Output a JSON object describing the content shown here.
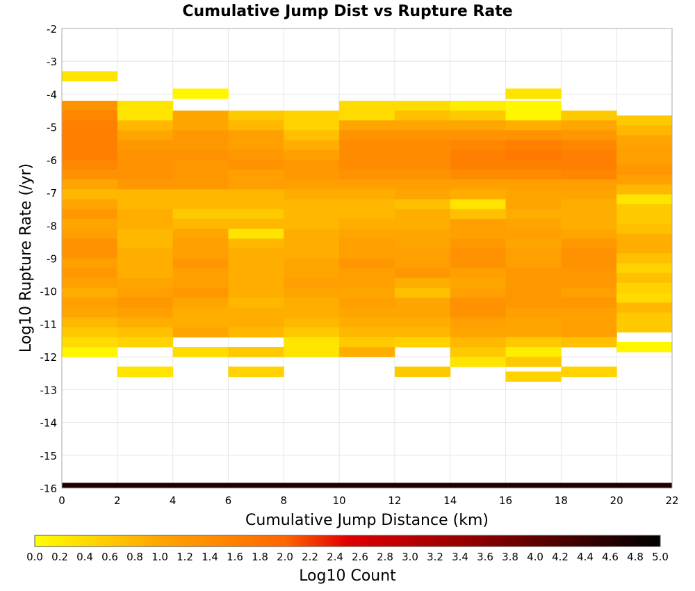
{
  "chart_data": {
    "type": "heatmap",
    "title": "Cumulative Jump Dist vs Rupture Rate",
    "xlabel": "Cumulative Jump Distance (km)",
    "ylabel": "Log10 Rupture Rate (/yr)",
    "xlim": [
      0,
      22
    ],
    "ylim": [
      -16,
      -2
    ],
    "x_ticks": [
      "0",
      "2",
      "4",
      "6",
      "8",
      "10",
      "12",
      "14",
      "16",
      "18",
      "20",
      "22"
    ],
    "y_ticks": [
      "-2",
      "-3",
      "-4",
      "-5",
      "-6",
      "-7",
      "-8",
      "-9",
      "-10",
      "-11",
      "-12",
      "-13",
      "-14",
      "-15",
      "-16"
    ],
    "x_bin_width": 2,
    "y_bin_width": 0.3,
    "grid": true,
    "colorbar": {
      "label": "Log10 Count",
      "min": 0.0,
      "max": 5.0,
      "ticks": [
        "0.0",
        "0.2",
        "0.4",
        "0.6",
        "0.8",
        "1.0",
        "1.2",
        "1.4",
        "1.6",
        "1.8",
        "2.0",
        "2.2",
        "2.4",
        "2.6",
        "2.8",
        "3.0",
        "3.2",
        "3.4",
        "3.6",
        "3.8",
        "4.0",
        "4.2",
        "4.4",
        "4.6",
        "4.8",
        "5.0"
      ],
      "colors": [
        "#ffff00",
        "#ffa500",
        "#ff6600",
        "#e00000",
        "#900000",
        "#000000"
      ]
    },
    "columns": [
      {
        "x": 1,
        "cells": [
          [
            -3.45,
            0.3
          ],
          [
            -4.35,
            1.3
          ],
          [
            -4.65,
            1.5
          ],
          [
            -4.95,
            1.6
          ],
          [
            -5.25,
            1.6
          ],
          [
            -5.55,
            1.6
          ],
          [
            -5.85,
            1.6
          ],
          [
            -6.15,
            1.5
          ],
          [
            -6.45,
            1.3
          ],
          [
            -6.75,
            1.0
          ],
          [
            -7.05,
            0.8
          ],
          [
            -7.35,
            1.0
          ],
          [
            -7.65,
            1.2
          ],
          [
            -7.95,
            1.0
          ],
          [
            -8.25,
            1.1
          ],
          [
            -8.55,
            1.3
          ],
          [
            -8.85,
            1.3
          ],
          [
            -9.15,
            1.1
          ],
          [
            -9.45,
            1.2
          ],
          [
            -9.75,
            1.1
          ],
          [
            -10.05,
            0.9
          ],
          [
            -10.35,
            1.1
          ],
          [
            -10.65,
            1.0
          ],
          [
            -10.95,
            0.8
          ],
          [
            -11.25,
            0.6
          ],
          [
            -11.55,
            0.4
          ],
          [
            -11.85,
            0.1
          ]
        ]
      },
      {
        "x": 3,
        "cells": [
          [
            -4.35,
            0.3
          ],
          [
            -4.65,
            0.3
          ],
          [
            -4.95,
            0.8
          ],
          [
            -5.25,
            1.0
          ],
          [
            -5.55,
            1.2
          ],
          [
            -5.85,
            1.3
          ],
          [
            -6.15,
            1.3
          ],
          [
            -6.45,
            1.3
          ],
          [
            -6.75,
            1.2
          ],
          [
            -7.05,
            0.8
          ],
          [
            -7.35,
            0.8
          ],
          [
            -7.65,
            0.9
          ],
          [
            -7.95,
            0.9
          ],
          [
            -8.25,
            0.8
          ],
          [
            -8.55,
            0.8
          ],
          [
            -8.85,
            0.9
          ],
          [
            -9.15,
            0.9
          ],
          [
            -9.45,
            0.9
          ],
          [
            -9.75,
            1.0
          ],
          [
            -10.05,
            1.1
          ],
          [
            -10.35,
            1.2
          ],
          [
            -10.65,
            1.1
          ],
          [
            -10.95,
            0.9
          ],
          [
            -11.25,
            0.7
          ],
          [
            -11.55,
            0.5
          ],
          [
            -12.45,
            0.3
          ]
        ]
      },
      {
        "x": 5,
        "cells": [
          [
            -3.98,
            0.1
          ],
          [
            -4.65,
            1.0
          ],
          [
            -4.95,
            1.0
          ],
          [
            -5.25,
            1.2
          ],
          [
            -5.55,
            1.2
          ],
          [
            -5.85,
            1.3
          ],
          [
            -6.15,
            1.2
          ],
          [
            -6.45,
            1.2
          ],
          [
            -6.75,
            1.2
          ],
          [
            -7.05,
            0.8
          ],
          [
            -7.35,
            0.8
          ],
          [
            -7.65,
            0.6
          ],
          [
            -7.95,
            0.8
          ],
          [
            -8.25,
            1.0
          ],
          [
            -8.55,
            1.1
          ],
          [
            -8.85,
            1.1
          ],
          [
            -9.15,
            1.2
          ],
          [
            -9.45,
            1.1
          ],
          [
            -9.75,
            1.1
          ],
          [
            -10.05,
            1.2
          ],
          [
            -10.35,
            1.0
          ],
          [
            -10.65,
            0.9
          ],
          [
            -10.95,
            0.9
          ],
          [
            -11.25,
            1.0
          ],
          [
            -11.85,
            0.4
          ]
        ]
      },
      {
        "x": 7,
        "cells": [
          [
            -4.65,
            0.6
          ],
          [
            -4.95,
            0.8
          ],
          [
            -5.25,
            1.1
          ],
          [
            -5.55,
            1.1
          ],
          [
            -5.85,
            1.2
          ],
          [
            -6.15,
            1.3
          ],
          [
            -6.45,
            1.1
          ],
          [
            -6.75,
            1.1
          ],
          [
            -7.05,
            0.8
          ],
          [
            -7.35,
            0.8
          ],
          [
            -7.65,
            0.6
          ],
          [
            -7.95,
            0.8
          ],
          [
            -8.25,
            0.3
          ],
          [
            -8.55,
            0.8
          ],
          [
            -8.85,
            0.9
          ],
          [
            -9.15,
            0.9
          ],
          [
            -9.45,
            0.9
          ],
          [
            -9.75,
            0.9
          ],
          [
            -10.05,
            0.9
          ],
          [
            -10.35,
            0.8
          ],
          [
            -10.65,
            0.9
          ],
          [
            -10.95,
            0.9
          ],
          [
            -11.25,
            0.8
          ],
          [
            -11.85,
            0.6
          ],
          [
            -12.45,
            0.5
          ]
        ]
      },
      {
        "x": 9,
        "cells": [
          [
            -4.65,
            0.5
          ],
          [
            -4.95,
            0.5
          ],
          [
            -5.25,
            0.7
          ],
          [
            -5.55,
            0.9
          ],
          [
            -5.85,
            1.1
          ],
          [
            -6.15,
            1.2
          ],
          [
            -6.45,
            1.2
          ],
          [
            -6.75,
            1.1
          ],
          [
            -7.05,
            0.9
          ],
          [
            -7.35,
            0.8
          ],
          [
            -7.65,
            0.8
          ],
          [
            -7.95,
            0.8
          ],
          [
            -8.25,
            0.9
          ],
          [
            -8.55,
            0.9
          ],
          [
            -8.85,
            0.9
          ],
          [
            -9.15,
            1.0
          ],
          [
            -9.45,
            1.0
          ],
          [
            -9.75,
            1.1
          ],
          [
            -10.05,
            1.0
          ],
          [
            -10.35,
            0.9
          ],
          [
            -10.65,
            0.9
          ],
          [
            -10.95,
            0.8
          ],
          [
            -11.25,
            0.6
          ],
          [
            -11.55,
            0.3
          ],
          [
            -11.85,
            0.3
          ]
        ]
      },
      {
        "x": 11,
        "cells": [
          [
            -4.35,
            0.4
          ],
          [
            -4.65,
            0.4
          ],
          [
            -4.95,
            1.0
          ],
          [
            -5.25,
            1.3
          ],
          [
            -5.55,
            1.4
          ],
          [
            -5.85,
            1.4
          ],
          [
            -6.15,
            1.4
          ],
          [
            -6.45,
            1.3
          ],
          [
            -6.75,
            1.1
          ],
          [
            -7.05,
            0.9
          ],
          [
            -7.35,
            0.8
          ],
          [
            -7.65,
            0.8
          ],
          [
            -7.95,
            0.9
          ],
          [
            -8.25,
            1.0
          ],
          [
            -8.55,
            1.1
          ],
          [
            -8.85,
            1.1
          ],
          [
            -9.15,
            1.2
          ],
          [
            -9.45,
            1.1
          ],
          [
            -9.75,
            1.1
          ],
          [
            -10.05,
            1.0
          ],
          [
            -10.35,
            1.1
          ],
          [
            -10.65,
            1.0
          ],
          [
            -10.95,
            0.9
          ],
          [
            -11.25,
            0.8
          ],
          [
            -11.55,
            0.6
          ],
          [
            -11.85,
            0.9
          ]
        ]
      },
      {
        "x": 13,
        "cells": [
          [
            -4.35,
            0.4
          ],
          [
            -4.65,
            0.7
          ],
          [
            -4.95,
            1.0
          ],
          [
            -5.25,
            1.3
          ],
          [
            -5.55,
            1.4
          ],
          [
            -5.85,
            1.4
          ],
          [
            -6.15,
            1.4
          ],
          [
            -6.45,
            1.3
          ],
          [
            -6.75,
            1.1
          ],
          [
            -7.05,
            1.0
          ],
          [
            -7.35,
            0.7
          ],
          [
            -7.65,
            0.9
          ],
          [
            -7.95,
            0.9
          ],
          [
            -8.25,
            1.0
          ],
          [
            -8.55,
            1.0
          ],
          [
            -8.85,
            1.1
          ],
          [
            -9.15,
            1.1
          ],
          [
            -9.45,
            1.2
          ],
          [
            -9.75,
            0.9
          ],
          [
            -10.05,
            0.7
          ],
          [
            -10.35,
            1.0
          ],
          [
            -10.65,
            1.0
          ],
          [
            -10.95,
            0.9
          ],
          [
            -11.25,
            0.8
          ],
          [
            -11.55,
            0.5
          ],
          [
            -12.45,
            0.6
          ]
        ]
      },
      {
        "x": 15,
        "cells": [
          [
            -4.35,
            0.2
          ],
          [
            -4.65,
            0.6
          ],
          [
            -4.95,
            1.0
          ],
          [
            -5.25,
            1.3
          ],
          [
            -5.55,
            1.5
          ],
          [
            -5.85,
            1.6
          ],
          [
            -6.15,
            1.6
          ],
          [
            -6.45,
            1.4
          ],
          [
            -6.75,
            1.1
          ],
          [
            -7.05,
            0.9
          ],
          [
            -7.35,
            0.3
          ],
          [
            -7.65,
            0.7
          ],
          [
            -7.95,
            1.1
          ],
          [
            -8.25,
            1.1
          ],
          [
            -8.55,
            1.2
          ],
          [
            -8.85,
            1.3
          ],
          [
            -9.15,
            1.3
          ],
          [
            -9.45,
            1.1
          ],
          [
            -9.75,
            1.0
          ],
          [
            -10.05,
            1.1
          ],
          [
            -10.35,
            1.3
          ],
          [
            -10.65,
            1.3
          ],
          [
            -10.95,
            1.1
          ],
          [
            -11.25,
            1.0
          ],
          [
            -11.55,
            0.8
          ],
          [
            -11.85,
            0.6
          ],
          [
            -12.15,
            0.3
          ]
        ]
      },
      {
        "x": 17,
        "cells": [
          [
            -3.98,
            0.3
          ],
          [
            -4.35,
            0.1
          ],
          [
            -4.65,
            0.1
          ],
          [
            -4.95,
            0.9
          ],
          [
            -5.25,
            1.3
          ],
          [
            -5.55,
            1.6
          ],
          [
            -5.85,
            1.7
          ],
          [
            -6.15,
            1.6
          ],
          [
            -6.45,
            1.4
          ],
          [
            -6.75,
            1.1
          ],
          [
            -7.05,
            1.0
          ],
          [
            -7.35,
            1.0
          ],
          [
            -7.65,
            0.9
          ],
          [
            -7.95,
            1.0
          ],
          [
            -8.25,
            1.1
          ],
          [
            -8.55,
            1.0
          ],
          [
            -8.85,
            1.1
          ],
          [
            -9.15,
            1.1
          ],
          [
            -9.45,
            1.2
          ],
          [
            -9.75,
            1.2
          ],
          [
            -10.05,
            1.2
          ],
          [
            -10.35,
            1.2
          ],
          [
            -10.65,
            1.1
          ],
          [
            -10.95,
            1.0
          ],
          [
            -11.25,
            1.0
          ],
          [
            -11.55,
            0.6
          ],
          [
            -11.85,
            0.2
          ],
          [
            -12.15,
            0.6
          ],
          [
            -12.6,
            0.5
          ]
        ]
      },
      {
        "x": 19,
        "cells": [
          [
            -4.65,
            0.6
          ],
          [
            -4.95,
            1.0
          ],
          [
            -5.25,
            1.2
          ],
          [
            -5.55,
            1.5
          ],
          [
            -5.85,
            1.6
          ],
          [
            -6.15,
            1.6
          ],
          [
            -6.45,
            1.5
          ],
          [
            -6.75,
            1.1
          ],
          [
            -7.05,
            1.0
          ],
          [
            -7.35,
            0.9
          ],
          [
            -7.65,
            0.9
          ],
          [
            -7.95,
            0.9
          ],
          [
            -8.25,
            1.0
          ],
          [
            -8.55,
            1.2
          ],
          [
            -8.85,
            1.3
          ],
          [
            -9.15,
            1.3
          ],
          [
            -9.45,
            1.2
          ],
          [
            -9.75,
            1.2
          ],
          [
            -10.05,
            1.1
          ],
          [
            -10.35,
            1.2
          ],
          [
            -10.65,
            1.1
          ],
          [
            -10.95,
            1.1
          ],
          [
            -11.25,
            1.1
          ],
          [
            -11.55,
            0.7
          ],
          [
            -12.45,
            0.5
          ]
        ]
      },
      {
        "x": 21,
        "cells": [
          [
            -4.8,
            0.6
          ],
          [
            -5.1,
            0.8
          ],
          [
            -5.4,
            1.0
          ],
          [
            -5.7,
            1.1
          ],
          [
            -6.0,
            1.1
          ],
          [
            -6.3,
            1.2
          ],
          [
            -6.6,
            1.1
          ],
          [
            -6.9,
            0.8
          ],
          [
            -7.2,
            0.3
          ],
          [
            -7.5,
            0.6
          ],
          [
            -7.8,
            0.6
          ],
          [
            -8.1,
            0.7
          ],
          [
            -8.4,
            0.9
          ],
          [
            -8.7,
            0.9
          ],
          [
            -9.0,
            0.7
          ],
          [
            -9.3,
            0.5
          ],
          [
            -9.6,
            0.7
          ],
          [
            -9.9,
            0.5
          ],
          [
            -10.2,
            0.4
          ],
          [
            -10.5,
            0.8
          ],
          [
            -10.8,
            0.6
          ],
          [
            -11.1,
            0.6
          ],
          [
            -11.7,
            0.1
          ]
        ]
      }
    ],
    "bottom_row": {
      "y": -15.92,
      "dy": 0.16,
      "value": 4.7
    }
  }
}
